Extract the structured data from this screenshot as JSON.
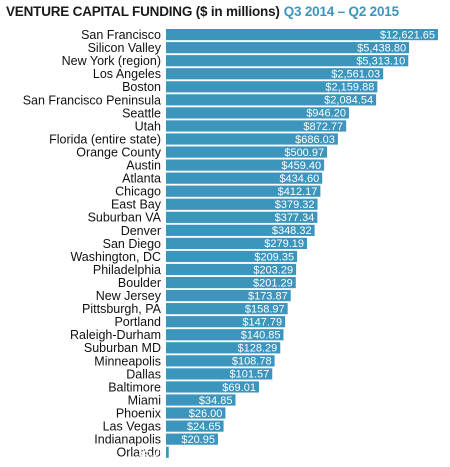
{
  "colors": {
    "bar": "#3b95bd",
    "title_main": "#1a1a1a",
    "title_sub": "#3b95bd",
    "value_text": "#ffffff"
  },
  "title": {
    "main": "VENTURE CAPITAL FUNDING ($ in millions)",
    "period": "Q3 2014 – Q2 2015"
  },
  "chart_data": {
    "type": "bar",
    "orientation": "horizontal",
    "title": "VENTURE CAPITAL FUNDING ($ in millions)",
    "subtitle": "Q3 2014 – Q2 2015",
    "grid": false,
    "categories": [
      "San Francisco",
      "Silicon Valley",
      "New York (region)",
      "Los Angeles",
      "Boston",
      "San Francisco Peninsula",
      "Seattle",
      "Utah",
      "Florida (entire state)",
      "Orange County",
      "Austin",
      "Atlanta",
      "Chicago",
      "East Bay",
      "Suburban VA",
      "Denver",
      "San Diego",
      "Washington, DC",
      "Philadelphia",
      "Boulder",
      "New Jersey",
      "Pittsburgh, PA",
      "Portland",
      "Raleigh-Durham",
      "Suburban MD",
      "Minneapolis",
      "Dallas",
      "Baltimore",
      "Miami",
      "Phoenix",
      "Las Vegas",
      "Indianapolis",
      "Orlando"
    ],
    "values": [
      12621.65,
      5438.8,
      5313.1,
      2561.03,
      2159.88,
      2084.54,
      946.2,
      872.77,
      686.03,
      500.97,
      459.4,
      434.6,
      412.17,
      379.32,
      377.34,
      348.32,
      279.19,
      209.35,
      203.29,
      201.29,
      173.87,
      158.97,
      147.79,
      140.85,
      128.29,
      108.78,
      101.57,
      69.01,
      34.85,
      26.0,
      24.65,
      20.95,
      5.0
    ],
    "value_labels": [
      "$12,621.65",
      "$5,438.80",
      "$5,313.10",
      "$2,561.03",
      "$2,159.88",
      "$2,084.54",
      "$946.20",
      "$872.77",
      "$686.03",
      "$500.97",
      "$459.40",
      "$434.60",
      "$412.17",
      "$379.32",
      "$377.34",
      "$348.32",
      "$279.19",
      "$209.35",
      "$203.29",
      "$201.29",
      "$173.87",
      "$158.97",
      "$147.79",
      "$140.85",
      "$128.29",
      "$108.78",
      "$101.57",
      "$69.01",
      "$34.85",
      "$26.00",
      "$24.65",
      "$20.95",
      "$5.00"
    ]
  }
}
